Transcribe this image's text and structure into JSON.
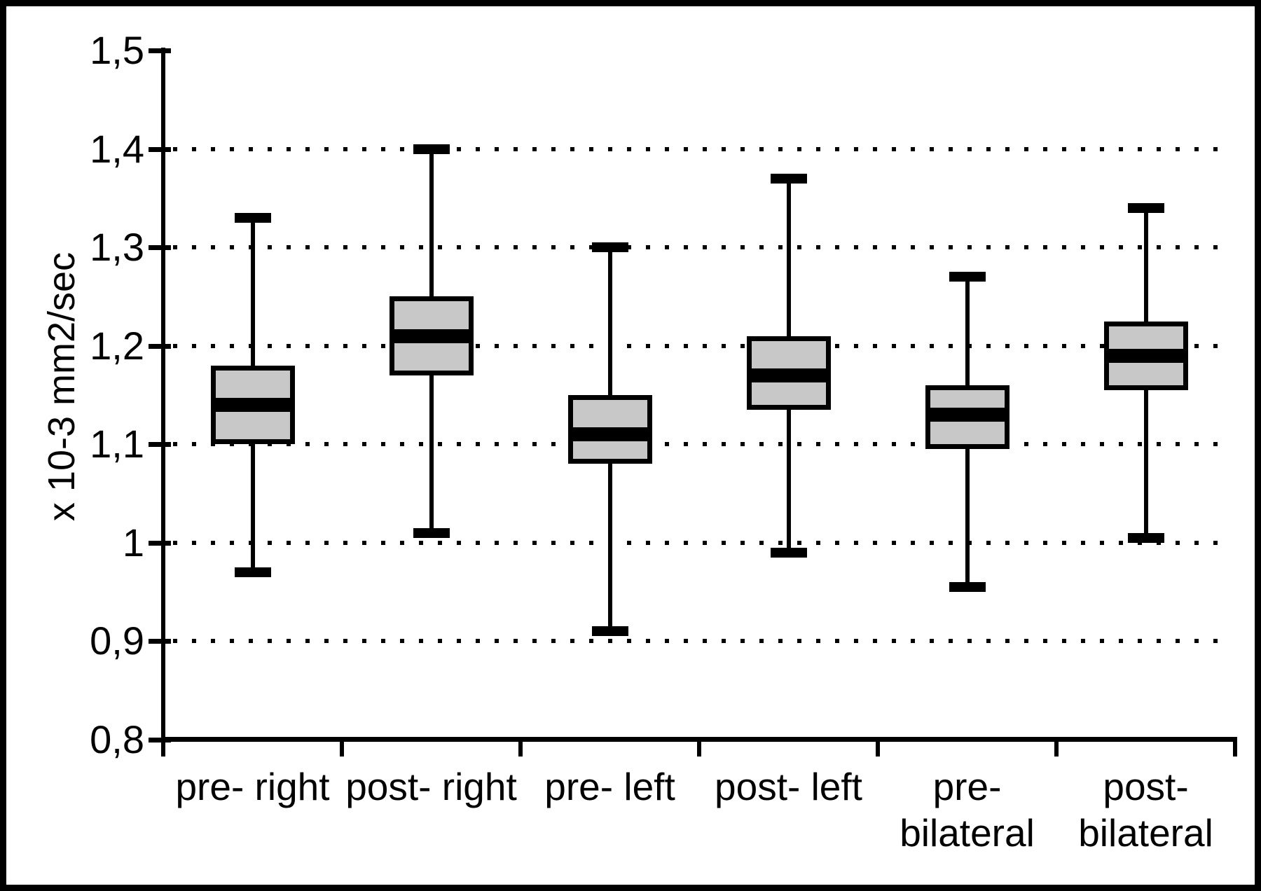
{
  "figure": {
    "background": "#ffffff",
    "frame_color": "#000000"
  },
  "chart_data": {
    "type": "box",
    "title": "",
    "xlabel": "",
    "ylabel": "x 10-3 mm2/sec",
    "ylim": [
      0.8,
      1.5
    ],
    "grid": "dotted-horizontal",
    "legend": "none",
    "y_ticks": [
      {
        "label": "1,5",
        "value": 1.5
      },
      {
        "label": "1,4",
        "value": 1.4
      },
      {
        "label": "1,3",
        "value": 1.3
      },
      {
        "label": "1,2",
        "value": 1.2
      },
      {
        "label": "1,1",
        "value": 1.1
      },
      {
        "label": "1",
        "value": 1.0
      },
      {
        "label": "0,9",
        "value": 0.9
      },
      {
        "label": "0,8",
        "value": 0.8
      }
    ],
    "gridline_values": [
      1.4,
      1.3,
      1.2,
      1.1,
      1.0,
      0.9
    ],
    "categories": [
      [
        "pre- right"
      ],
      [
        "post- right"
      ],
      [
        "pre- left"
      ],
      [
        "post- left"
      ],
      [
        "pre-",
        "bilateral"
      ],
      [
        "post-",
        "bilateral"
      ]
    ],
    "series": [
      {
        "label": "pre- right",
        "min": 0.97,
        "q1": 1.1,
        "median": 1.14,
        "q3": 1.18,
        "max": 1.33
      },
      {
        "label": "post- right",
        "min": 1.01,
        "q1": 1.17,
        "median": 1.21,
        "q3": 1.25,
        "max": 1.4
      },
      {
        "label": "pre- left",
        "min": 0.91,
        "q1": 1.08,
        "median": 1.11,
        "q3": 1.15,
        "max": 1.3
      },
      {
        "label": "post- left",
        "min": 0.99,
        "q1": 1.135,
        "median": 1.17,
        "q3": 1.21,
        "max": 1.37
      },
      {
        "label": "pre- bilateral",
        "min": 0.955,
        "q1": 1.095,
        "median": 1.13,
        "q3": 1.16,
        "max": 1.27
      },
      {
        "label": "post- bilateral",
        "min": 1.005,
        "q1": 1.155,
        "median": 1.19,
        "q3": 1.225,
        "max": 1.34
      }
    ],
    "colors": {
      "box_fill": "#c8c8c8",
      "stroke": "#000000"
    }
  }
}
